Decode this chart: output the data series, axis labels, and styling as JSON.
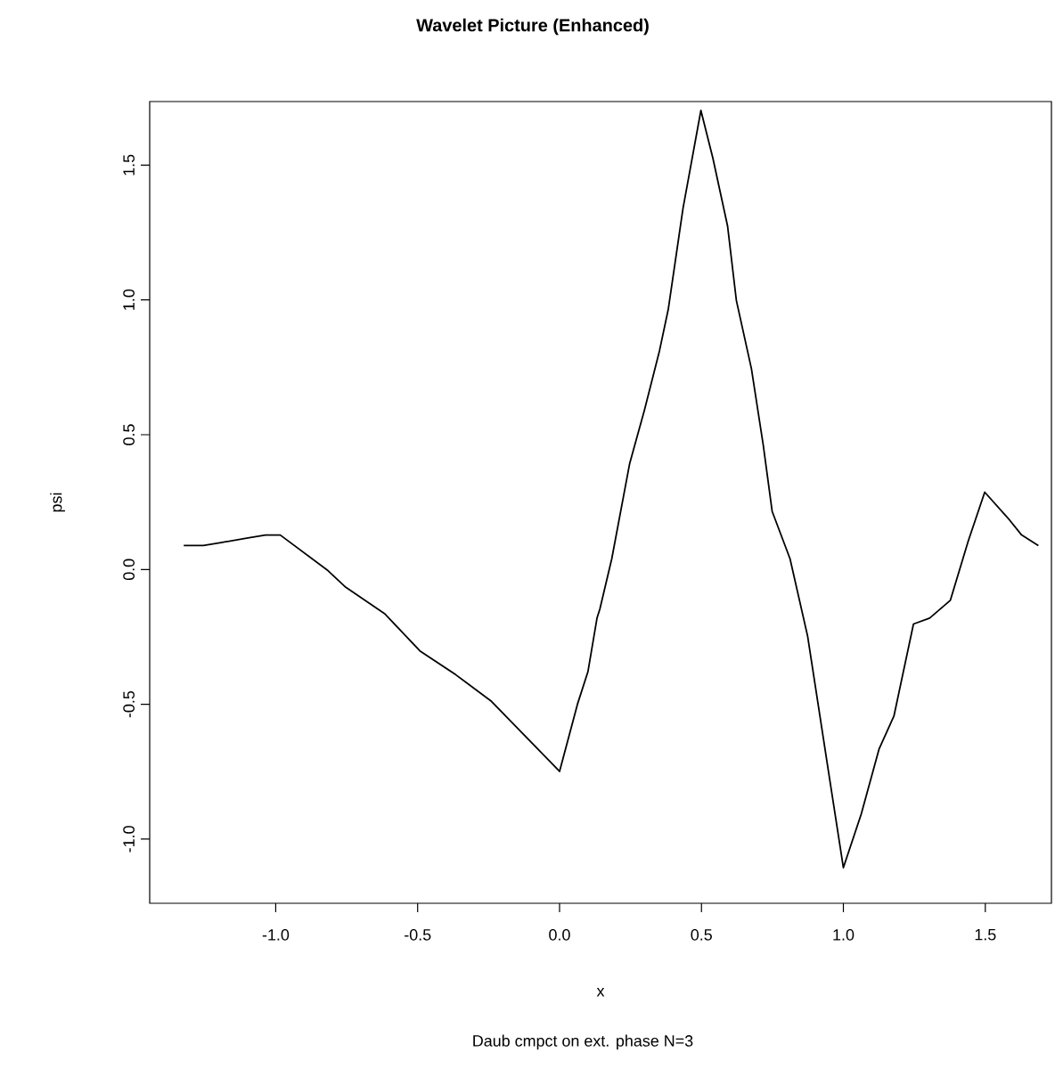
{
  "chart_data": {
    "type": "line",
    "title": "Wavelet Picture  (Enhanced)",
    "xlabel": "x",
    "ylabel": "psi",
    "annotations": [
      "Daub cmpct on ext. phase N=3"
    ],
    "series": [
      {
        "color": "#000000",
        "x": [
          -1.324,
          -1.255,
          -1.193,
          -1.098,
          -1.036,
          -0.984,
          -0.816,
          -0.753,
          -0.617,
          -0.492,
          -0.366,
          -0.24,
          0.0,
          0.063,
          0.1,
          0.132,
          0.142,
          0.184,
          0.247,
          0.299,
          0.352,
          0.383,
          0.435,
          0.498,
          0.54,
          0.592,
          0.623,
          0.676,
          0.718,
          0.749,
          0.812,
          0.874,
          0.948,
          1.0,
          1.063,
          1.126,
          1.178,
          1.247,
          1.304,
          1.377,
          1.44,
          1.498,
          1.586,
          1.628,
          1.687
        ],
        "values": [
          0.089,
          0.089,
          0.1,
          0.117,
          0.128,
          0.128,
          -0.004,
          -0.066,
          -0.163,
          -0.302,
          -0.39,
          -0.489,
          -0.749,
          -0.5,
          -0.379,
          -0.18,
          -0.147,
          0.04,
          0.393,
          0.591,
          0.811,
          0.965,
          1.34,
          1.703,
          1.527,
          1.274,
          0.998,
          0.745,
          0.459,
          0.216,
          0.04,
          -0.247,
          -0.753,
          -1.106,
          -0.907,
          -0.665,
          -0.544,
          -0.202,
          -0.18,
          -0.114,
          0.106,
          0.287,
          0.183,
          0.128,
          0.089
        ]
      }
    ],
    "xlim": [
      -1.444,
      1.733
    ],
    "ylim": [
      -1.238,
      1.736
    ],
    "xticks": [
      {
        "value": -1,
        "label": "-1.0"
      },
      {
        "value": -0.5,
        "label": "-0.5"
      },
      {
        "value": 0,
        "label": "0.0"
      },
      {
        "value": 0.5,
        "label": "0.5"
      },
      {
        "value": 1,
        "label": "1.0"
      },
      {
        "value": 1.5,
        "label": "1.5"
      }
    ],
    "yticks": [
      {
        "value": -1,
        "label": "-1.0"
      },
      {
        "value": -0.5,
        "label": "-0.5"
      },
      {
        "value": 0,
        "label": "0.0"
      },
      {
        "value": 0.5,
        "label": "0.5"
      },
      {
        "value": 1,
        "label": "1.0"
      },
      {
        "value": 1.5,
        "label": "1.5"
      }
    ]
  }
}
